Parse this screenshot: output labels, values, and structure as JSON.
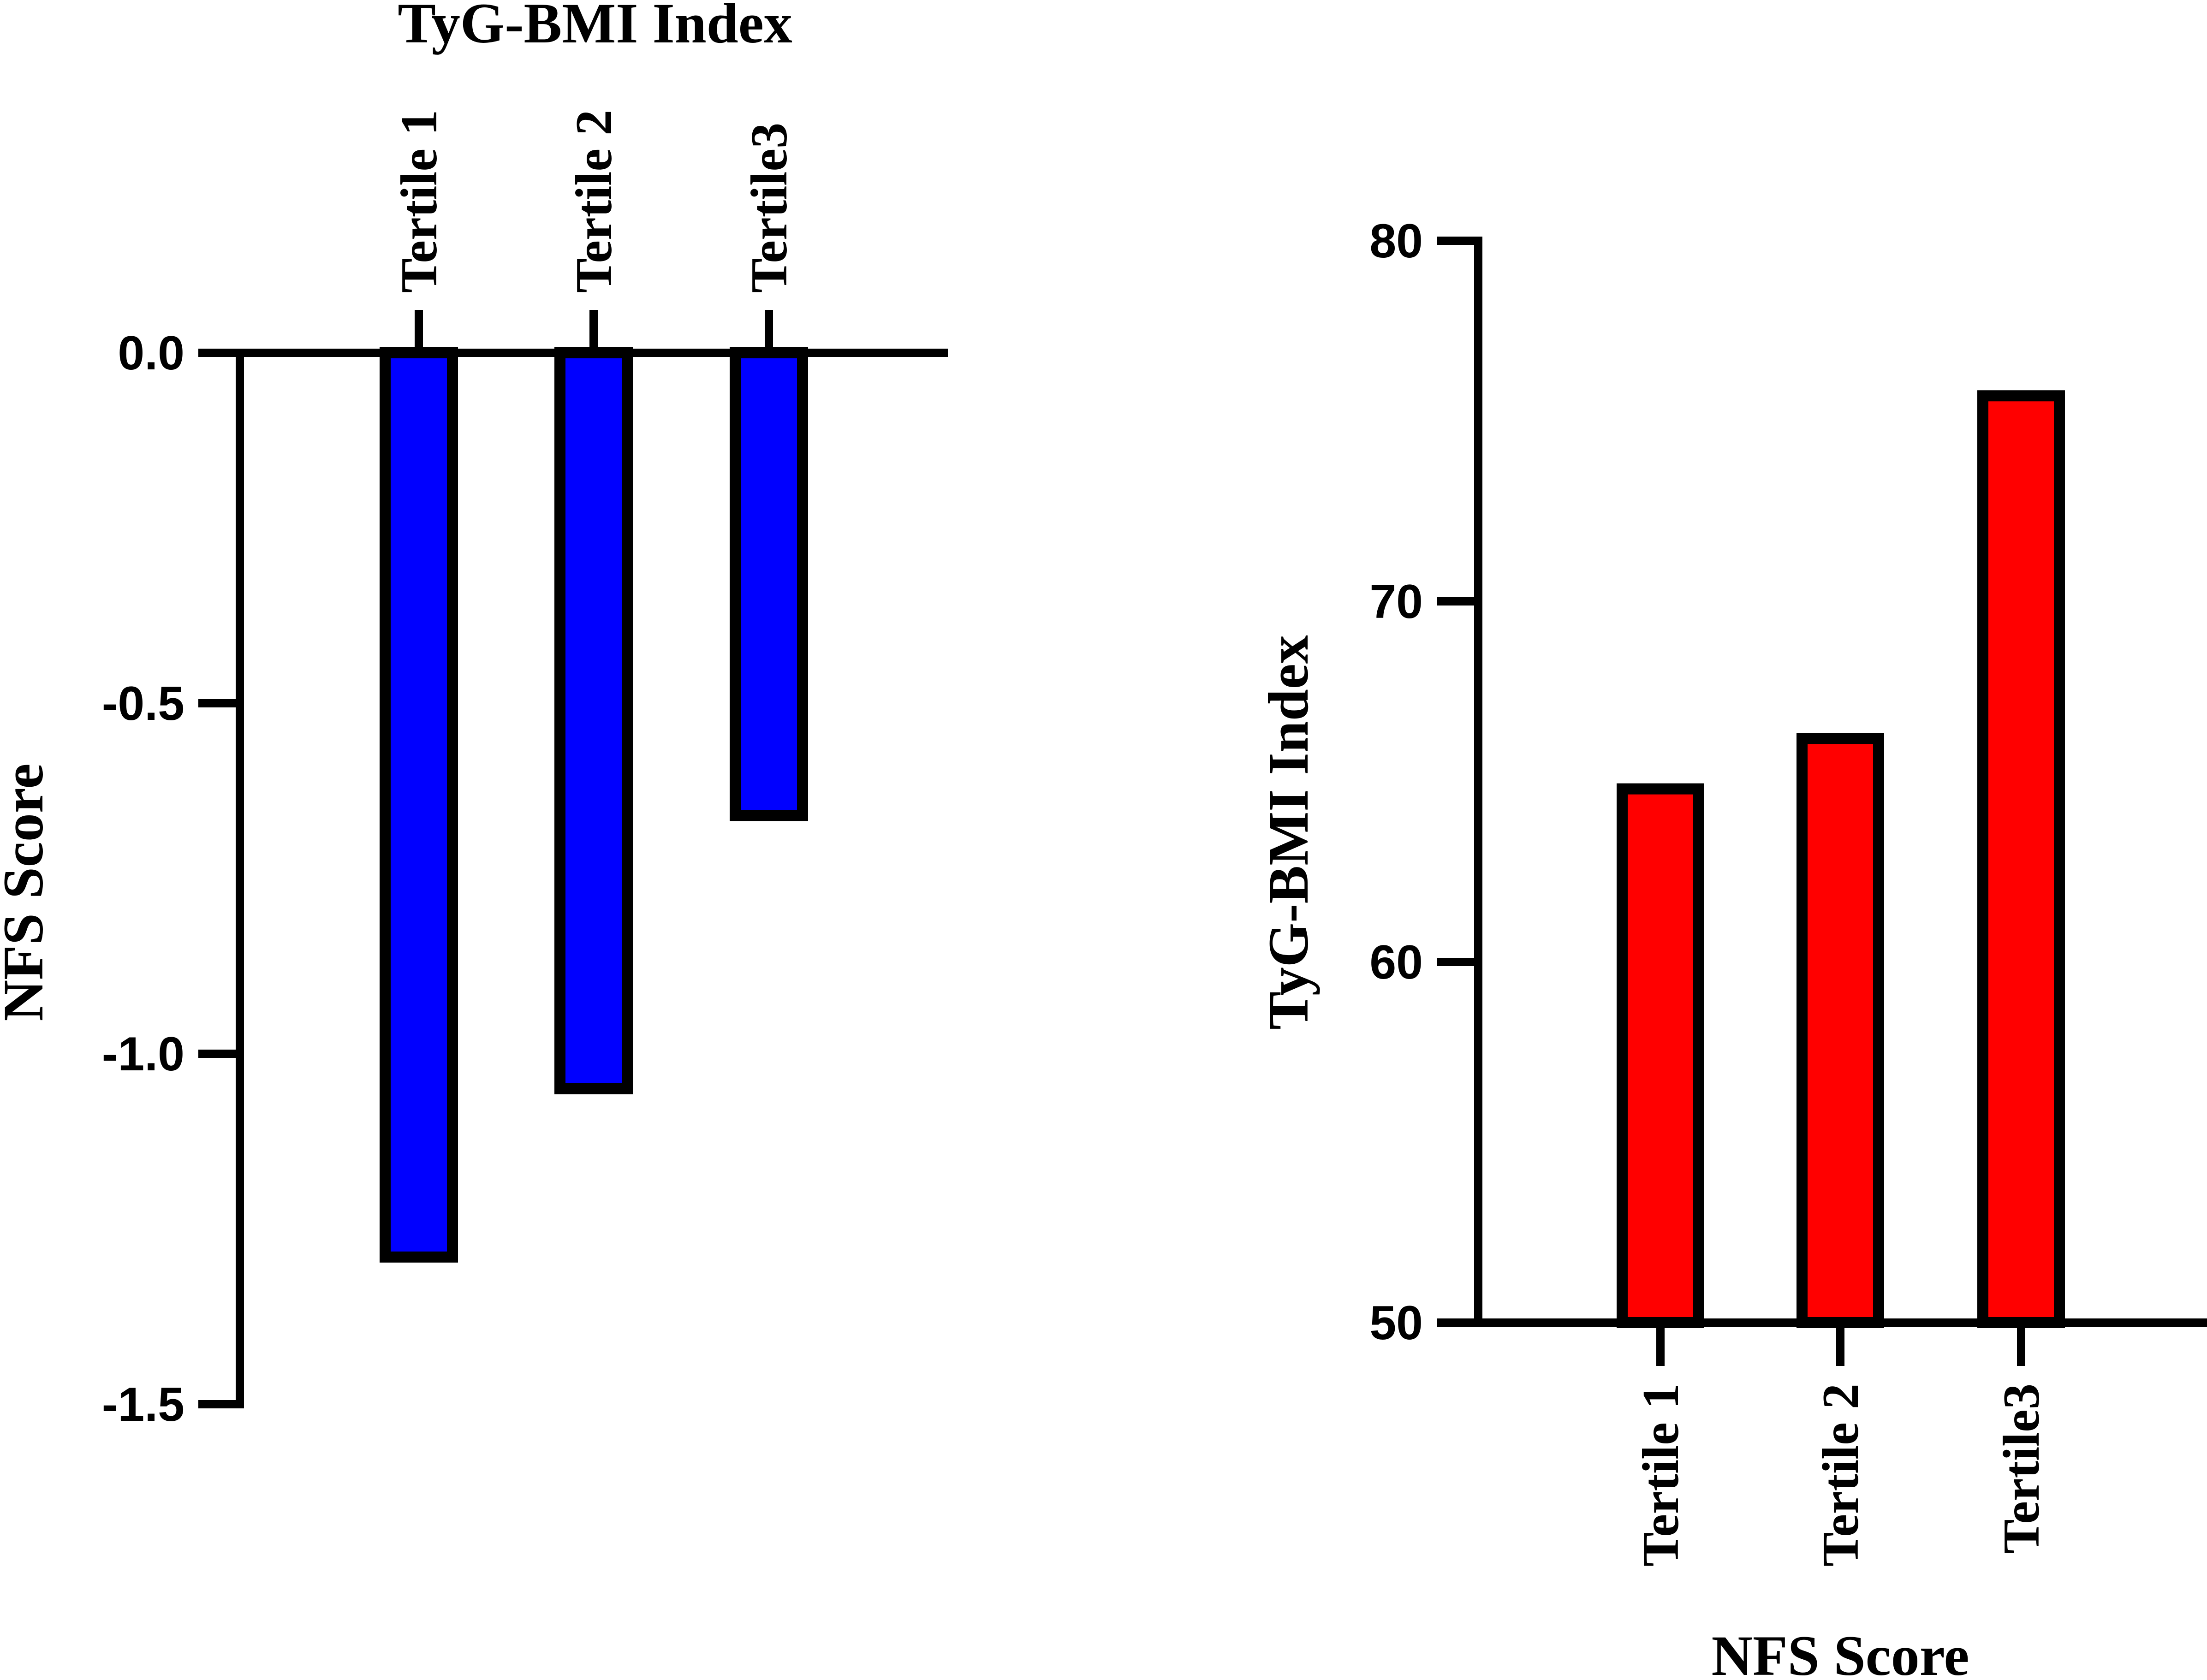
{
  "chart_data": [
    {
      "type": "bar",
      "categories": [
        "Tertile 1",
        "Tertile 2",
        "Tertile3"
      ],
      "values": [
        -1.29,
        -1.05,
        -0.66
      ],
      "xlabel": "TyG-BMI Index",
      "ylabel": "NFS Score",
      "ylim": [
        -1.5,
        0.0
      ],
      "yticks": [
        "0.0",
        "-0.5",
        "-1.0",
        "-1.5"
      ],
      "ytick_values": [
        0.0,
        -0.5,
        -1.0,
        -1.5
      ],
      "bar_color": "#0000FF",
      "grid": false,
      "legend": "none"
    },
    {
      "type": "bar",
      "categories": [
        "Tertile 1",
        "Tertile 2",
        "Tertile3"
      ],
      "values": [
        64.8,
        66.2,
        75.7
      ],
      "xlabel": "NFS Score",
      "ylabel": "TyG-BMI Index",
      "ylim": [
        50,
        80
      ],
      "yticks": [
        "80",
        "70",
        "60",
        "50"
      ],
      "ytick_values": [
        80,
        70,
        60,
        50
      ],
      "bar_color": "#FF0000",
      "grid": false,
      "legend": "none"
    }
  ]
}
